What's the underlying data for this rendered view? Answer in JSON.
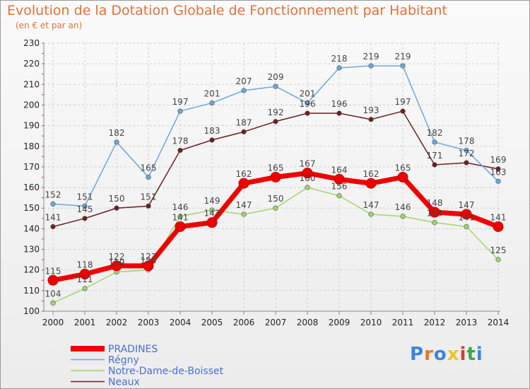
{
  "header": {
    "title": "Evolution de la Dotation Globale de Fonctionnement par Habitant",
    "subtitle": "(en € et par an)"
  },
  "logo": {
    "text": "Proxiti",
    "colors": [
      "#3a86d9",
      "#e8742a",
      "#3a86d9",
      "#e8c52a",
      "#d93a3a",
      "#3aa84a",
      "#3a86d9"
    ]
  },
  "chart_data": {
    "type": "line",
    "x": [
      2000,
      2001,
      2002,
      2003,
      2004,
      2005,
      2006,
      2007,
      2008,
      2009,
      2010,
      2011,
      2012,
      2013,
      2014
    ],
    "ylim": [
      100,
      230
    ],
    "yticks": [
      100,
      110,
      120,
      130,
      140,
      150,
      160,
      170,
      180,
      190,
      200,
      210,
      220,
      230
    ],
    "grid": true,
    "legend_position": "bottom-left",
    "series": [
      {
        "name": "Notre-Dame-de-Boisset",
        "color": "#a3d36b",
        "values": [
          104,
          111,
          119,
          120,
          146,
          149,
          147,
          150,
          160,
          156,
          147,
          146,
          143,
          141,
          125
        ]
      },
      {
        "name": "Neaux",
        "color": "#6b1f24",
        "values": [
          141,
          145,
          150,
          151,
          178,
          183,
          187,
          192,
          196,
          196,
          193,
          197,
          171,
          172,
          169
        ]
      },
      {
        "name": "Régny",
        "color": "#6ea6d9",
        "values": [
          152,
          151,
          182,
          165,
          197,
          201,
          207,
          209,
          201,
          218,
          219,
          219,
          182,
          178,
          163
        ]
      },
      {
        "name": "PRADINES",
        "color": "#ee0000",
        "values": [
          115,
          118,
          122,
          122,
          141,
          143,
          162,
          165,
          167,
          164,
          162,
          165,
          148,
          147,
          141
        ]
      }
    ],
    "legend_order": [
      "PRADINES",
      "Régny",
      "Notre-Dame-de-Boisset",
      "Neaux"
    ]
  }
}
